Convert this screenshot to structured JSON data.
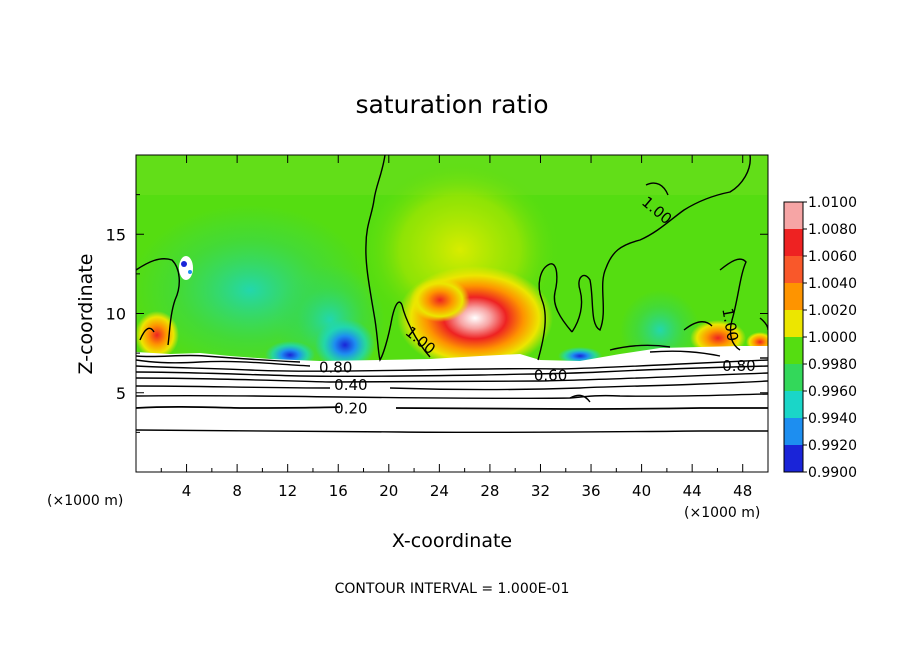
{
  "chart_data": {
    "type": "heatmap",
    "title": "saturation ratio",
    "xlabel": "X-coordinate",
    "ylabel": "Z-coordinate",
    "x_unit": "(×1000 m)",
    "footer": "CONTOUR INTERVAL = 1.000E-01",
    "xlim": [
      0,
      50
    ],
    "ylim": [
      0,
      20
    ],
    "x_ticks": [
      4,
      8,
      12,
      16,
      20,
      24,
      28,
      32,
      36,
      40,
      44,
      48
    ],
    "y_ticks": [
      5,
      10,
      15
    ],
    "colorbar": {
      "ticks": [
        "1.0100",
        "1.0080",
        "1.0060",
        "1.0040",
        "1.0020",
        "1.0000",
        "0.9980",
        "0.9960",
        "0.9940",
        "0.9920",
        "0.9900"
      ],
      "colors": [
        "#f6a5a5",
        "#ee2222",
        "#f9582a",
        "#fe9400",
        "#ece600",
        "#55dd11",
        "#33d85a",
        "#1ad6c8",
        "#1d8ef0",
        "#1a24d8",
        "#5a1a9c"
      ]
    },
    "contour_labels": [
      {
        "text": "1.00",
        "x": 41.2,
        "z": 16.5,
        "angle": 40
      },
      {
        "text": "1.00",
        "x": 22.5,
        "z": 8.3,
        "angle": 40
      },
      {
        "text": "1.00",
        "x": 47.0,
        "z": 9.3,
        "angle": 80
      },
      {
        "text": "0.80",
        "x": 15.8,
        "z": 6.6,
        "angle": 0
      },
      {
        "text": "0.60",
        "x": 32.8,
        "z": 6.1,
        "angle": 0
      },
      {
        "text": "0.80",
        "x": 47.7,
        "z": 6.7,
        "angle": 0
      },
      {
        "text": "0.40",
        "x": 17.0,
        "z": 5.5,
        "angle": 0
      },
      {
        "text": "0.20",
        "x": 17.0,
        "z": 4.0,
        "angle": 0
      }
    ]
  }
}
